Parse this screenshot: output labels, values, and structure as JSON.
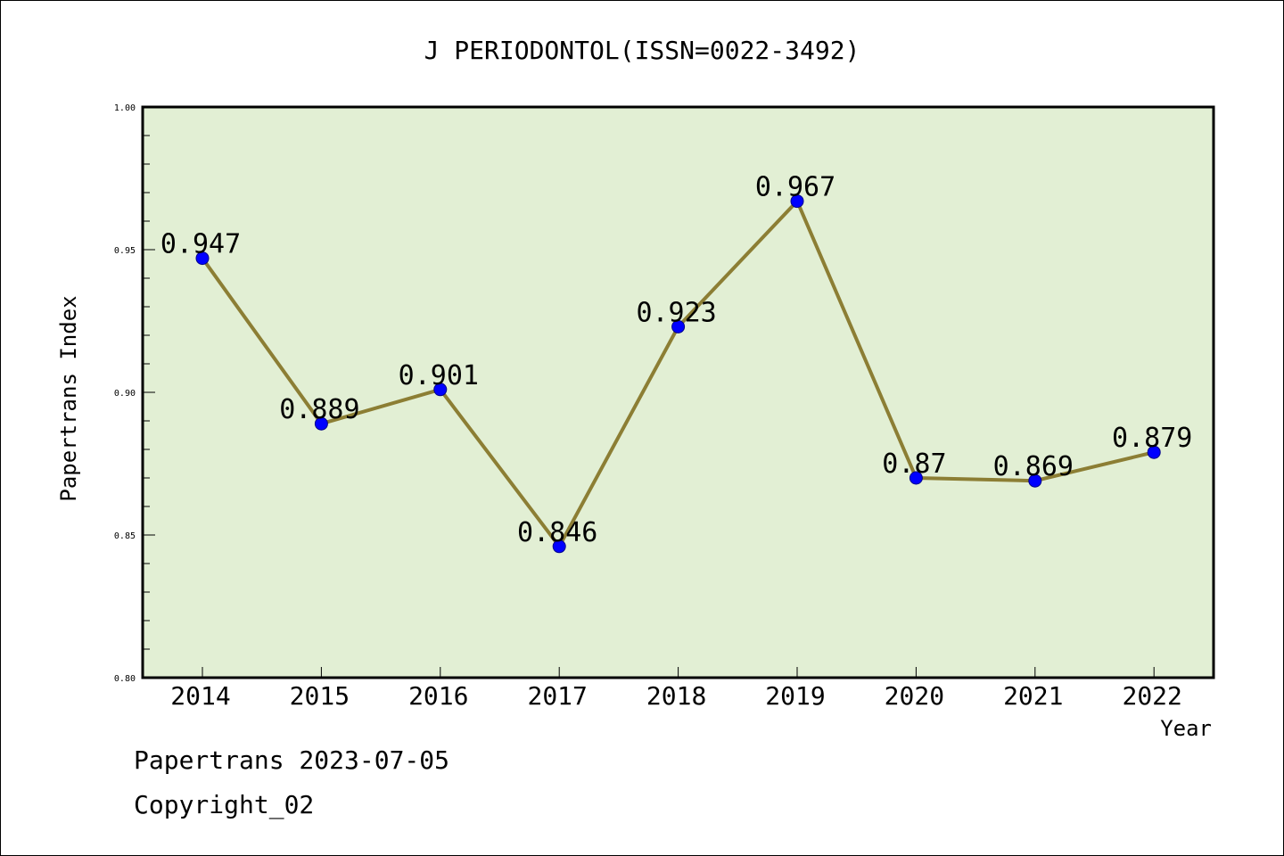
{
  "chart_data": {
    "type": "line",
    "title": "J PERIODONTOL(ISSN=0022-3492)",
    "xlabel": "Year",
    "ylabel": "Papertrans Index",
    "categories": [
      "2014",
      "2015",
      "2016",
      "2017",
      "2018",
      "2019",
      "2020",
      "2021",
      "2022"
    ],
    "values": [
      0.947,
      0.889,
      0.901,
      0.846,
      0.923,
      0.967,
      0.87,
      0.869,
      0.879
    ],
    "data_labels": [
      "0.947",
      "0.889",
      "0.901",
      "0.846",
      "0.923",
      "0.967",
      "0.87",
      "0.869",
      "0.879"
    ],
    "ylim": [
      0.8,
      1.0
    ],
    "yticks": [
      "0.80",
      "0.85",
      "0.90",
      "0.95",
      "1.00"
    ],
    "grid": false,
    "colors": {
      "plot_background": "#e2efd4",
      "line": "#8c7e34",
      "marker": "#0000ff"
    }
  },
  "footer": {
    "line1": "Papertrans 2023-07-05",
    "line2": "Copyright_02"
  }
}
